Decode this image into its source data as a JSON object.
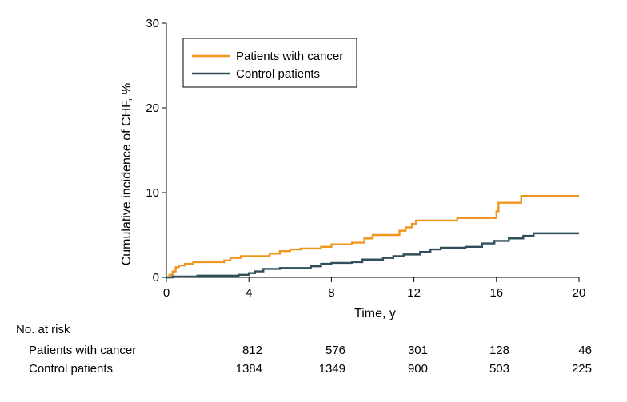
{
  "chart_data": {
    "type": "line",
    "xlabel": "Time, y",
    "ylabel": "Cumulative incidence of CHF, %",
    "xlim": [
      0,
      20
    ],
    "ylim": [
      0,
      30
    ],
    "xticks": [
      "0",
      "4",
      "8",
      "12",
      "16",
      "20"
    ],
    "yticks": [
      "0",
      "10",
      "20",
      "30"
    ],
    "legend_position": "top-left",
    "grid": false,
    "series": [
      {
        "name": "Patients with cancer",
        "color": "#f0961e",
        "step": true,
        "points": [
          [
            0,
            0
          ],
          [
            0.15,
            0.3
          ],
          [
            0.3,
            0.7
          ],
          [
            0.45,
            1.2
          ],
          [
            0.6,
            1.4
          ],
          [
            0.9,
            1.6
          ],
          [
            1.3,
            1.8
          ],
          [
            2.8,
            2.0
          ],
          [
            3.1,
            2.3
          ],
          [
            3.6,
            2.5
          ],
          [
            5.0,
            2.8
          ],
          [
            5.5,
            3.1
          ],
          [
            6.0,
            3.3
          ],
          [
            6.5,
            3.4
          ],
          [
            7.5,
            3.6
          ],
          [
            8.0,
            3.9
          ],
          [
            9.0,
            4.1
          ],
          [
            9.6,
            4.6
          ],
          [
            10.0,
            5.0
          ],
          [
            11.3,
            5.5
          ],
          [
            11.6,
            5.9
          ],
          [
            11.9,
            6.3
          ],
          [
            12.1,
            6.7
          ],
          [
            14.1,
            7.0
          ],
          [
            16.0,
            7.8
          ],
          [
            16.1,
            8.8
          ],
          [
            17.2,
            9.6
          ],
          [
            20.0,
            9.6
          ]
        ]
      },
      {
        "name": "Control patients",
        "color": "#2f4f5a",
        "step": true,
        "points": [
          [
            0,
            0
          ],
          [
            0.3,
            0.1
          ],
          [
            1.5,
            0.2
          ],
          [
            3.5,
            0.3
          ],
          [
            4.0,
            0.5
          ],
          [
            4.3,
            0.7
          ],
          [
            4.7,
            1.0
          ],
          [
            5.5,
            1.1
          ],
          [
            7.0,
            1.3
          ],
          [
            7.5,
            1.6
          ],
          [
            8.0,
            1.7
          ],
          [
            9.0,
            1.8
          ],
          [
            9.5,
            2.1
          ],
          [
            10.5,
            2.3
          ],
          [
            11.0,
            2.5
          ],
          [
            11.5,
            2.7
          ],
          [
            12.3,
            3.0
          ],
          [
            12.8,
            3.3
          ],
          [
            13.3,
            3.5
          ],
          [
            14.5,
            3.6
          ],
          [
            15.3,
            4.0
          ],
          [
            15.9,
            4.3
          ],
          [
            16.6,
            4.6
          ],
          [
            17.3,
            4.9
          ],
          [
            17.8,
            5.2
          ],
          [
            20.0,
            5.2
          ]
        ]
      }
    ]
  },
  "risk_table": {
    "title": "No. at risk",
    "time_points": [
      4,
      8,
      12,
      16,
      20
    ],
    "rows": [
      {
        "label": "Patients with cancer",
        "values": [
          "812",
          "576",
          "301",
          "128",
          "46"
        ]
      },
      {
        "label": "Control patients",
        "values": [
          "1384",
          "1349",
          "900",
          "503",
          "225"
        ]
      }
    ]
  }
}
